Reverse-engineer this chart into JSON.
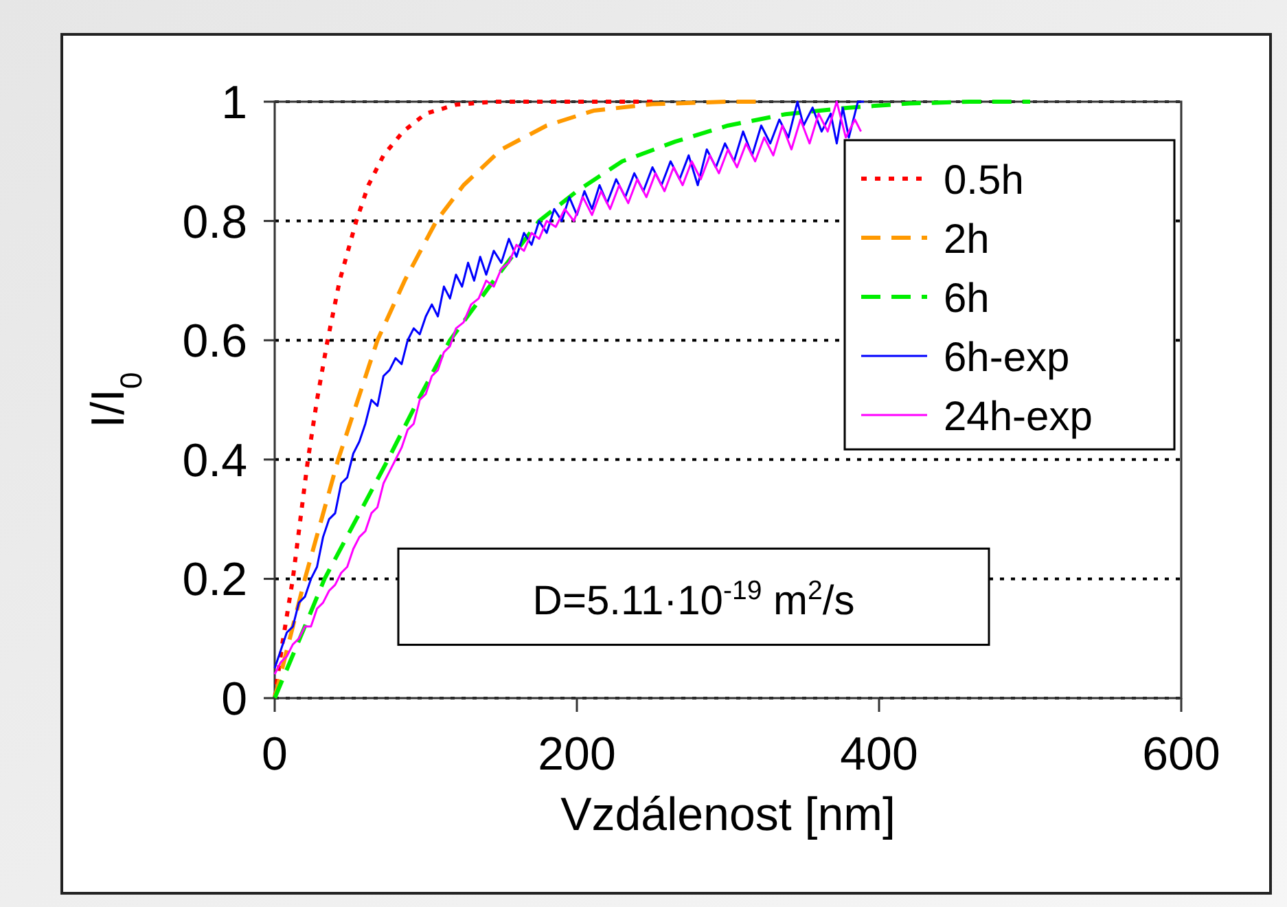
{
  "chart_data": {
    "type": "line",
    "xlabel": "Vzdálenost [nm]",
    "ylabel": "I/I$_{0}$",
    "xlim": [
      0,
      600
    ],
    "xticks": [
      0,
      200,
      400,
      600
    ],
    "ylim": [
      0,
      1
    ],
    "yticks": [
      0,
      {
        "value": 0.2,
        "label": "0.2"
      },
      {
        "value": 0.4,
        "label": "0.4"
      },
      {
        "value": 0.6,
        "label": "0.6"
      },
      {
        "value": 0.8,
        "label": "0.8"
      },
      1
    ],
    "grid": "y",
    "legend": "top right",
    "annotations": [
      "D=5.11·10$^{-19}$ m$^{2}$/s"
    ],
    "series": [
      {
        "name": "0.5h",
        "color": "#ff0000",
        "line_style": "dotted",
        "x": [
          0,
          5,
          12,
          17,
          22,
          28,
          35,
          43,
          54,
          62,
          72,
          85,
          100,
          120,
          145,
          250
        ],
        "values": [
          0,
          0.09,
          0.2,
          0.3,
          0.4,
          0.5,
          0.6,
          0.7,
          0.8,
          0.86,
          0.91,
          0.95,
          0.98,
          0.995,
          1,
          1
        ]
      },
      {
        "name": "2h",
        "color": "#ff9900",
        "line_style": "dashed",
        "x": [
          0,
          10,
          20,
          31,
          42,
          55,
          68,
          86,
          107,
          125,
          150,
          180,
          211,
          250,
          300,
          320
        ],
        "values": [
          0,
          0.1,
          0.2,
          0.3,
          0.4,
          0.5,
          0.6,
          0.7,
          0.8,
          0.86,
          0.92,
          0.96,
          0.985,
          0.996,
          1,
          1
        ]
      },
      {
        "name": "6h",
        "color": "#00ee00",
        "line_style": "dashed",
        "x": [
          0,
          15,
          33,
          54,
          75,
          95,
          116,
          145,
          175,
          200,
          230,
          265,
          300,
          338,
          380,
          420,
          460,
          500
        ],
        "values": [
          0,
          0.09,
          0.2,
          0.3,
          0.4,
          0.5,
          0.6,
          0.7,
          0.8,
          0.85,
          0.9,
          0.933,
          0.96,
          0.979,
          0.99,
          0.997,
          1,
          1
        ]
      },
      {
        "name": "6h-exp",
        "color": "#0000ff",
        "line_style": "solid",
        "x": [
          0,
          4,
          8,
          12,
          16,
          20,
          24,
          28,
          32,
          36,
          40,
          44,
          48,
          52,
          56,
          60,
          64,
          68,
          72,
          76,
          80,
          84,
          88,
          92,
          96,
          100,
          104,
          108,
          112,
          116,
          120,
          124,
          128,
          132,
          136,
          140,
          145,
          150,
          155,
          160,
          165,
          170,
          175,
          180,
          185,
          190,
          195,
          200,
          205,
          210,
          215,
          220,
          226,
          232,
          238,
          244,
          250,
          256,
          262,
          268,
          274,
          280,
          286,
          292,
          298,
          304,
          310,
          316,
          322,
          328,
          334,
          340,
          346,
          350,
          356,
          362,
          368,
          372,
          376,
          380,
          386,
          390
        ],
        "values": [
          0.05,
          0.08,
          0.11,
          0.12,
          0.16,
          0.17,
          0.2,
          0.22,
          0.27,
          0.3,
          0.31,
          0.36,
          0.37,
          0.41,
          0.43,
          0.46,
          0.5,
          0.49,
          0.54,
          0.55,
          0.57,
          0.56,
          0.6,
          0.62,
          0.61,
          0.64,
          0.66,
          0.64,
          0.69,
          0.67,
          0.71,
          0.69,
          0.73,
          0.7,
          0.74,
          0.71,
          0.75,
          0.73,
          0.77,
          0.74,
          0.78,
          0.76,
          0.8,
          0.78,
          0.82,
          0.8,
          0.84,
          0.81,
          0.85,
          0.82,
          0.86,
          0.83,
          0.87,
          0.84,
          0.88,
          0.85,
          0.89,
          0.86,
          0.9,
          0.87,
          0.91,
          0.86,
          0.92,
          0.89,
          0.93,
          0.9,
          0.95,
          0.91,
          0.96,
          0.93,
          0.97,
          0.94,
          1.0,
          0.96,
          0.99,
          0.95,
          0.98,
          0.93,
          0.99,
          0.94,
          1.0,
          1.0
        ]
      },
      {
        "name": "24h-exp",
        "color": "#ff00ff",
        "line_style": "solid",
        "x": [
          0,
          4,
          8,
          12,
          16,
          20,
          24,
          28,
          32,
          36,
          40,
          44,
          48,
          52,
          56,
          60,
          64,
          68,
          72,
          76,
          80,
          84,
          88,
          92,
          96,
          100,
          104,
          108,
          112,
          116,
          120,
          125,
          130,
          135,
          140,
          145,
          150,
          155,
          160,
          165,
          170,
          175,
          180,
          186,
          192,
          198,
          204,
          210,
          216,
          222,
          228,
          234,
          240,
          246,
          252,
          258,
          264,
          270,
          276,
          282,
          288,
          294,
          300,
          306,
          312,
          318,
          324,
          330,
          336,
          342,
          348,
          354,
          360,
          366,
          372,
          378,
          384,
          388
        ],
        "values": [
          0.04,
          0.06,
          0.07,
          0.09,
          0.1,
          0.12,
          0.12,
          0.15,
          0.16,
          0.18,
          0.19,
          0.21,
          0.22,
          0.25,
          0.27,
          0.28,
          0.31,
          0.32,
          0.36,
          0.38,
          0.4,
          0.42,
          0.45,
          0.46,
          0.5,
          0.51,
          0.54,
          0.55,
          0.58,
          0.59,
          0.62,
          0.63,
          0.66,
          0.67,
          0.7,
          0.69,
          0.72,
          0.73,
          0.76,
          0.75,
          0.78,
          0.77,
          0.8,
          0.79,
          0.82,
          0.8,
          0.84,
          0.81,
          0.85,
          0.82,
          0.86,
          0.83,
          0.87,
          0.84,
          0.88,
          0.85,
          0.89,
          0.86,
          0.9,
          0.87,
          0.91,
          0.88,
          0.92,
          0.89,
          0.93,
          0.9,
          0.94,
          0.91,
          0.96,
          0.92,
          0.97,
          0.93,
          0.98,
          0.95,
          1.0,
          0.94,
          0.97,
          0.95
        ]
      }
    ]
  }
}
